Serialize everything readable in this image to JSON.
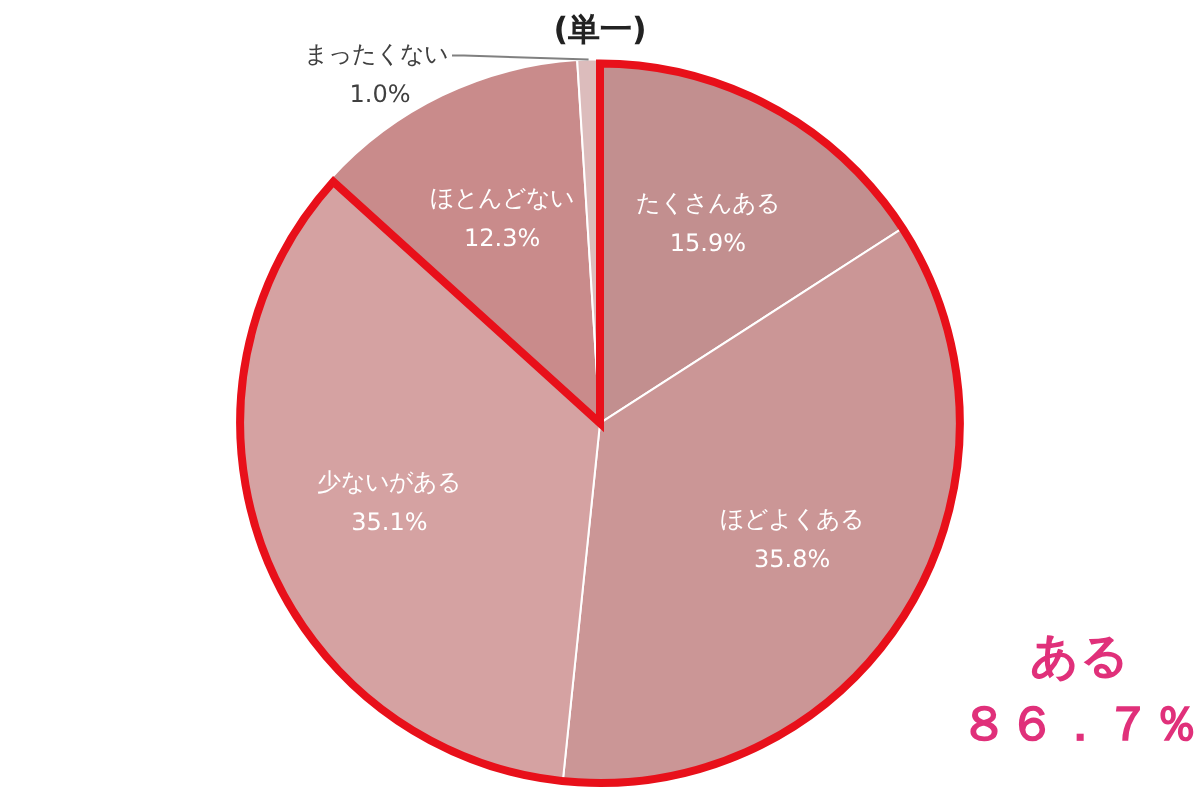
{
  "chart_data": {
    "type": "pie",
    "title": "(単一)",
    "categories": [
      "たくさんある",
      "ほどよくある",
      "少ないがある",
      "ほとんどない",
      "まったくない"
    ],
    "values": [
      15.9,
      35.8,
      35.1,
      12.3,
      1.0
    ],
    "value_labels": [
      "15.9%",
      "35.8%",
      "35.1%",
      "12.3%",
      "1.0%"
    ],
    "colors": [
      "#c28f8f",
      "#cb9696",
      "#d5a2a2",
      "#c98b8b",
      "#dcbcbc"
    ],
    "annotations": [
      "ある",
      "８６．７％"
    ],
    "legend": false
  }
}
